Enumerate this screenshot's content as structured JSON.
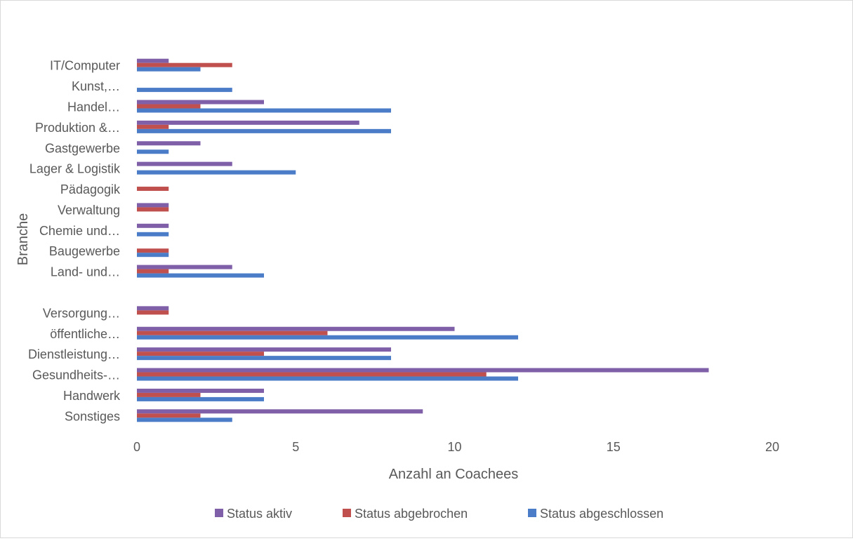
{
  "chart_data": {
    "type": "bar",
    "orientation": "horizontal",
    "title": "",
    "xlabel": "Anzahl an Coachees",
    "ylabel": "Branche",
    "xlim": [
      0,
      20
    ],
    "xticks": [
      0,
      5,
      10,
      15,
      20
    ],
    "grid": false,
    "legend_position": "bottom",
    "categories": [
      "IT/Computer",
      "Kunst,…",
      "Handel…",
      "Produktion &…",
      "Gastgewerbe",
      "Lager & Logistik",
      "Pädagogik",
      "Verwaltung",
      "Chemie und…",
      "Baugewerbe",
      "Land- und…",
      "",
      "Versorgung…",
      "öffentliche…",
      "Dienstleistung…",
      "Gesundheits-…",
      "Handwerk",
      "Sonstiges"
    ],
    "series": [
      {
        "name": "Status aktiv",
        "color": "#7f5fa8",
        "values": [
          1,
          0,
          4,
          7,
          2,
          3,
          0,
          1,
          1,
          0,
          3,
          0,
          1,
          10,
          8,
          18,
          4,
          9
        ]
      },
      {
        "name": "Status abgebrochen",
        "color": "#c0504d",
        "values": [
          3,
          0,
          2,
          1,
          0,
          0,
          1,
          1,
          0,
          1,
          1,
          0,
          1,
          6,
          4,
          11,
          2,
          2
        ]
      },
      {
        "name": "Status abgeschlossen",
        "color": "#4a7cc7",
        "values": [
          2,
          3,
          8,
          8,
          1,
          5,
          0,
          0,
          1,
          1,
          4,
          0,
          0,
          12,
          8,
          12,
          4,
          3
        ]
      }
    ]
  }
}
